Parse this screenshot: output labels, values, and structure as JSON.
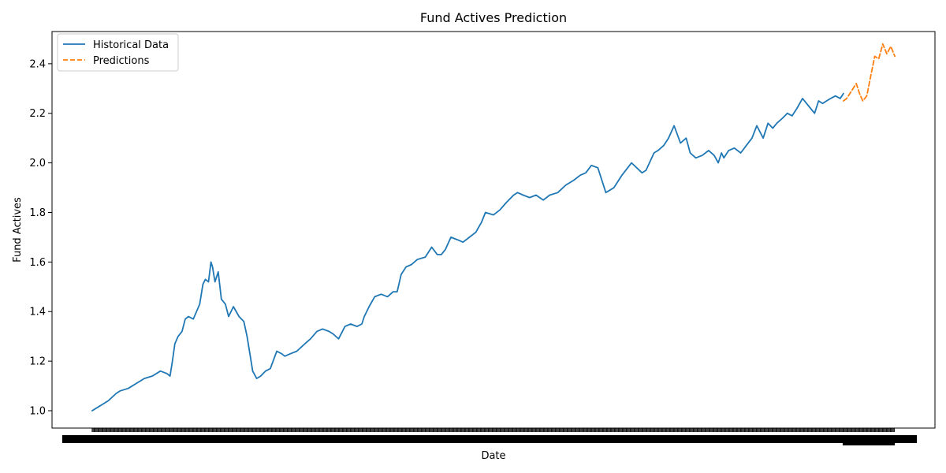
{
  "chart_data": {
    "type": "line",
    "title": "Fund Actives Prediction",
    "xlabel": "Date",
    "ylabel": "Fund Actives",
    "ylim": [
      0.93,
      2.53
    ],
    "yticks": [
      1.0,
      1.2,
      1.4,
      1.6,
      1.8,
      2.0,
      2.2,
      2.4
    ],
    "ytick_labels": [
      "1.0",
      "1.2",
      "1.4",
      "1.6",
      "1.8",
      "2.0",
      "2.2",
      "2.4"
    ],
    "x_tick_labels_note": "dense overlapping date tick labels (unreadable)",
    "xlim": [
      -0.05,
      1.05
    ],
    "legend": {
      "placement": "upper-left",
      "entries": [
        "Historical Data",
        "Predictions"
      ]
    },
    "colors": {
      "historical": "#1f77b4",
      "predictions": "#ff7f0e"
    },
    "series": [
      {
        "name": "Historical Data",
        "style": "solid",
        "x": [
          0.0,
          0.01,
          0.02,
          0.03,
          0.035,
          0.045,
          0.055,
          0.065,
          0.075,
          0.085,
          0.093,
          0.097,
          0.1,
          0.103,
          0.107,
          0.112,
          0.116,
          0.12,
          0.126,
          0.13,
          0.134,
          0.138,
          0.141,
          0.145,
          0.148,
          0.15,
          0.153,
          0.157,
          0.161,
          0.166,
          0.17,
          0.176,
          0.183,
          0.186,
          0.189,
          0.193,
          0.197,
          0.2,
          0.205,
          0.21,
          0.216,
          0.222,
          0.23,
          0.236,
          0.24,
          0.247,
          0.255,
          0.265,
          0.272,
          0.28,
          0.287,
          0.295,
          0.3,
          0.307,
          0.315,
          0.322,
          0.33,
          0.336,
          0.339,
          0.345,
          0.352,
          0.36,
          0.368,
          0.375,
          0.38,
          0.385,
          0.391,
          0.398,
          0.405,
          0.415,
          0.423,
          0.43,
          0.435,
          0.44,
          0.447,
          0.455,
          0.462,
          0.47,
          0.478,
          0.485,
          0.49,
          0.5,
          0.508,
          0.516,
          0.525,
          0.53,
          0.537,
          0.545,
          0.553,
          0.562,
          0.57,
          0.58,
          0.59,
          0.6,
          0.608,
          0.615,
          0.622,
          0.63,
          0.64,
          0.65,
          0.66,
          0.672,
          0.685,
          0.69,
          0.7,
          0.705,
          0.712,
          0.718,
          0.725,
          0.733,
          0.74,
          0.745,
          0.752,
          0.76,
          0.768,
          0.775,
          0.78,
          0.784,
          0.787,
          0.793,
          0.8,
          0.808,
          0.815,
          0.822,
          0.828,
          0.836,
          0.842,
          0.848,
          0.853,
          0.86,
          0.866,
          0.872,
          0.878,
          0.885,
          0.89,
          0.895,
          0.9,
          0.905,
          0.91,
          0.915,
          0.92,
          0.926,
          0.932,
          0.936
        ],
        "y": [
          1.0,
          1.02,
          1.04,
          1.07,
          1.08,
          1.09,
          1.11,
          1.13,
          1.14,
          1.16,
          1.15,
          1.14,
          1.2,
          1.27,
          1.3,
          1.32,
          1.37,
          1.38,
          1.37,
          1.4,
          1.43,
          1.51,
          1.53,
          1.52,
          1.6,
          1.58,
          1.52,
          1.56,
          1.45,
          1.43,
          1.38,
          1.42,
          1.38,
          1.37,
          1.36,
          1.3,
          1.22,
          1.16,
          1.13,
          1.14,
          1.16,
          1.17,
          1.24,
          1.23,
          1.22,
          1.23,
          1.24,
          1.27,
          1.29,
          1.32,
          1.33,
          1.32,
          1.31,
          1.29,
          1.34,
          1.35,
          1.34,
          1.35,
          1.38,
          1.42,
          1.46,
          1.47,
          1.46,
          1.48,
          1.48,
          1.55,
          1.58,
          1.59,
          1.61,
          1.62,
          1.66,
          1.63,
          1.63,
          1.65,
          1.7,
          1.69,
          1.68,
          1.7,
          1.72,
          1.76,
          1.8,
          1.79,
          1.81,
          1.84,
          1.87,
          1.88,
          1.87,
          1.86,
          1.87,
          1.85,
          1.87,
          1.88,
          1.91,
          1.93,
          1.95,
          1.96,
          1.99,
          1.98,
          1.88,
          1.9,
          1.95,
          2.0,
          1.96,
          1.97,
          2.04,
          2.05,
          2.07,
          2.1,
          2.15,
          2.08,
          2.1,
          2.04,
          2.02,
          2.03,
          2.05,
          2.03,
          2.0,
          2.04,
          2.02,
          2.05,
          2.06,
          2.04,
          2.07,
          2.1,
          2.15,
          2.1,
          2.16,
          2.14,
          2.16,
          2.18,
          2.2,
          2.19,
          2.22,
          2.26,
          2.24,
          2.22,
          2.2,
          2.25,
          2.24,
          2.25,
          2.26,
          2.27,
          2.26,
          2.28
        ]
      },
      {
        "name": "Predictions",
        "style": "dashed",
        "x": [
          0.936,
          0.94,
          0.944,
          0.948,
          0.952,
          0.956,
          0.96,
          0.965,
          0.97,
          0.975,
          0.98,
          0.985,
          0.99,
          0.995,
          1.0
        ],
        "y": [
          2.25,
          2.26,
          2.28,
          2.3,
          2.32,
          2.28,
          2.25,
          2.27,
          2.35,
          2.43,
          2.42,
          2.48,
          2.44,
          2.47,
          2.43
        ]
      }
    ]
  }
}
